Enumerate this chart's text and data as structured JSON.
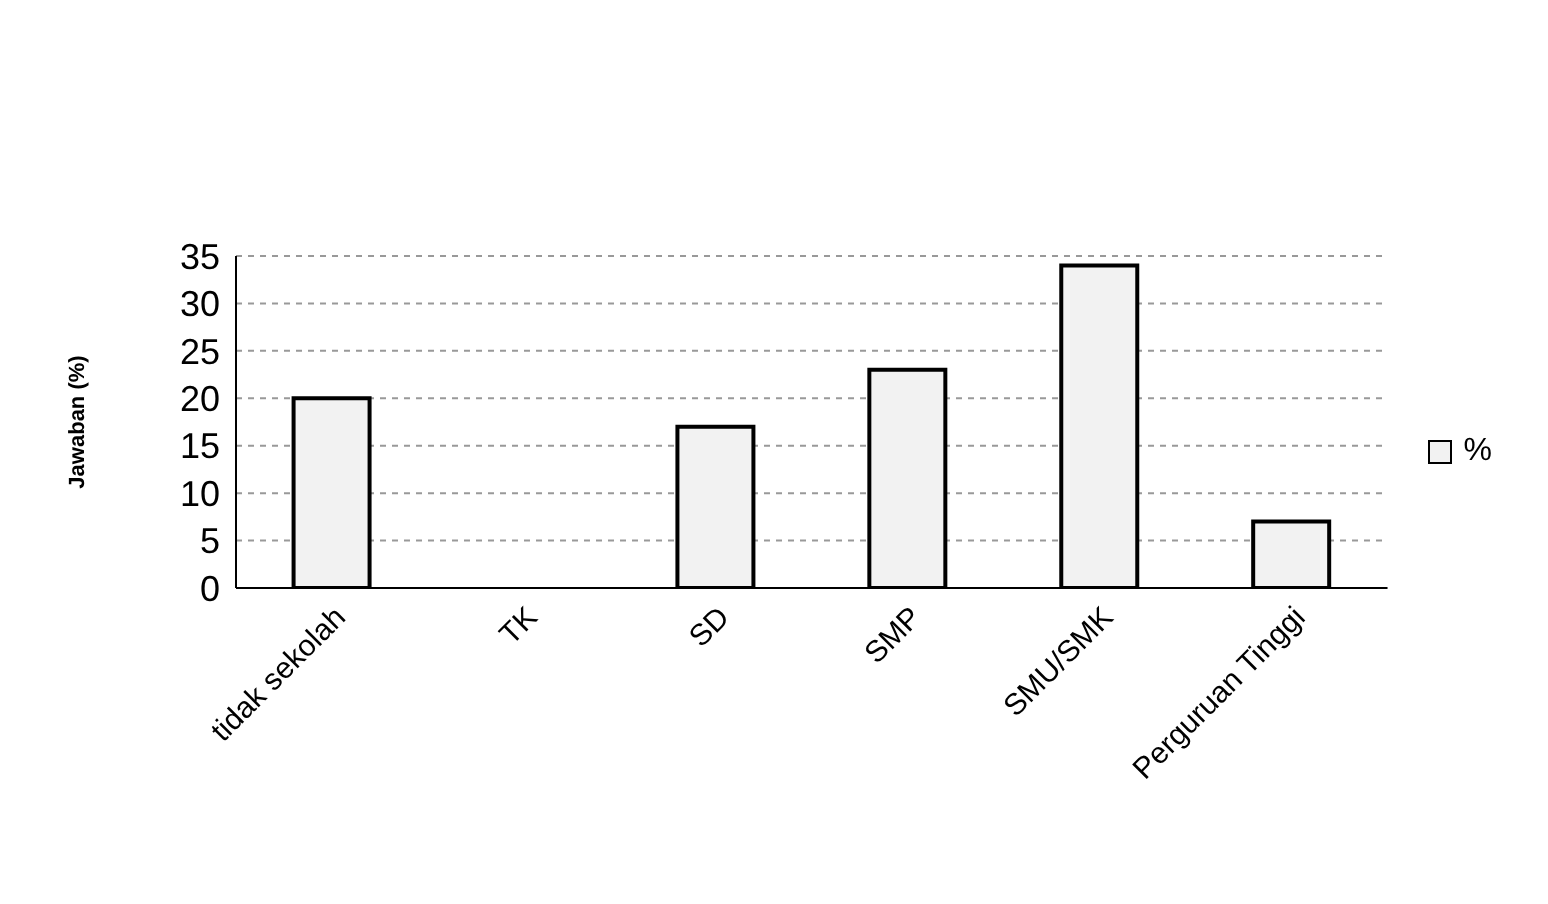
{
  "chart_data": {
    "type": "bar",
    "ylabel": "Jawaban (%)",
    "categories": [
      "tidak sekolah",
      "TK",
      "SD",
      "SMP",
      "SMU/SMK",
      "Perguruan Tinggi"
    ],
    "series": [
      {
        "name": "%",
        "color": "#f2f2f2",
        "values": [
          20,
          0,
          17,
          23,
          34,
          7
        ]
      }
    ],
    "ylim": [
      0,
      35
    ],
    "yticks": [
      0,
      5,
      10,
      15,
      20,
      25,
      30,
      35
    ],
    "grid": "y",
    "legend": "right"
  }
}
